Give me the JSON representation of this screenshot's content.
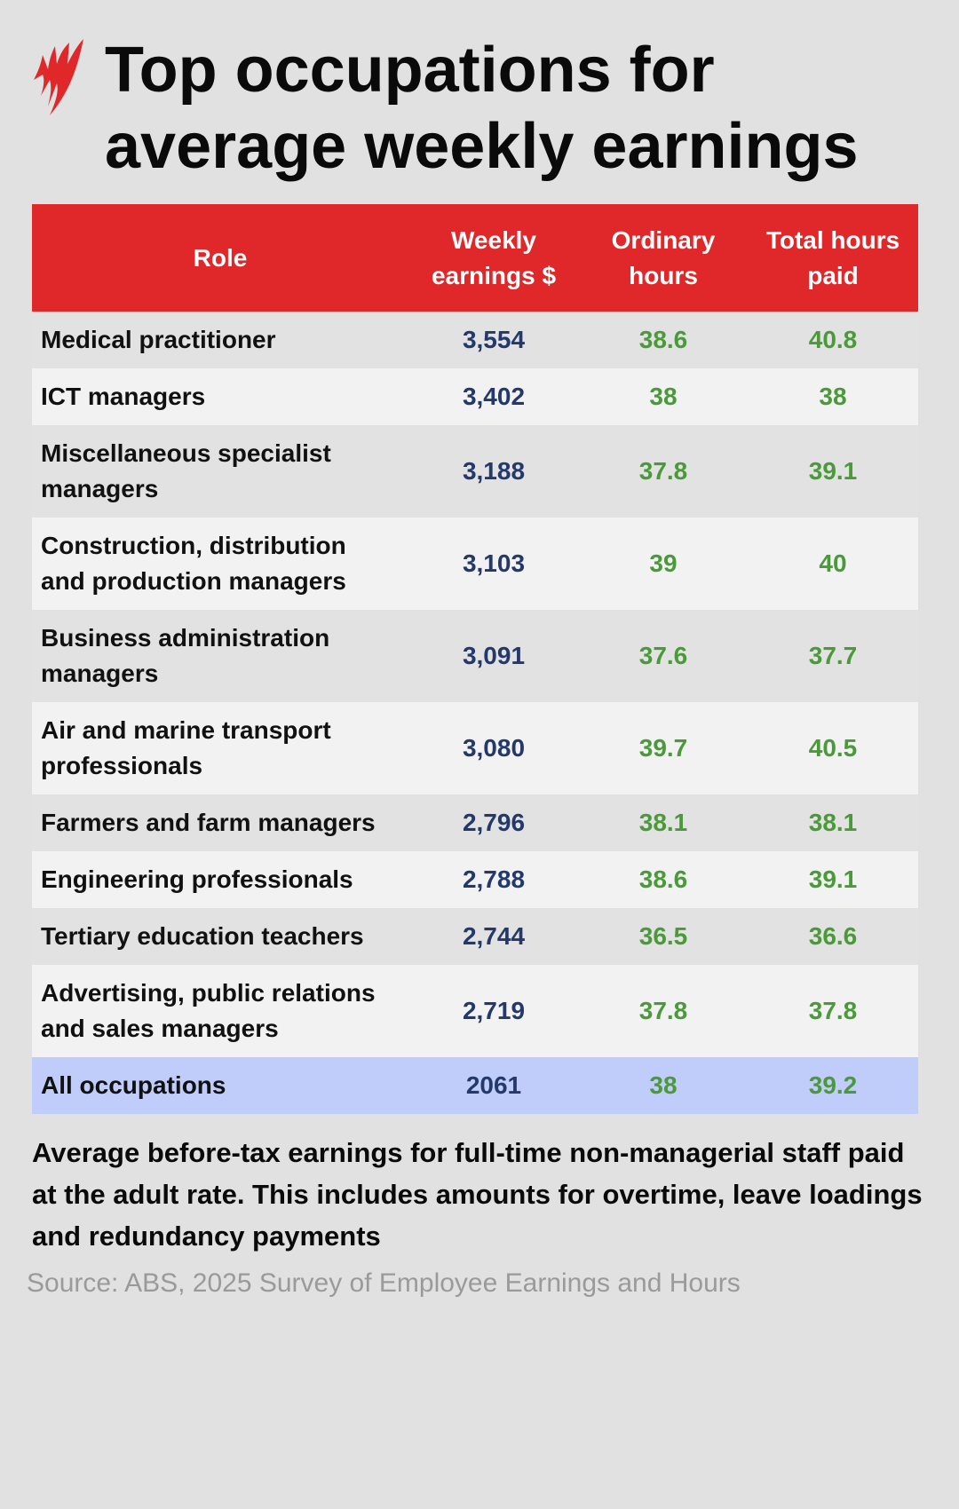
{
  "title": "Top occupations for average weekly earnings",
  "logo": "SBS-logo",
  "colors": {
    "header": "#e0282a",
    "earnings": "#24396b",
    "hours": "#4a9a3a",
    "all_row": "#c0ccfa"
  },
  "chart_data": {
    "type": "table",
    "columns": [
      "Role",
      "Weekly earnings $",
      "Ordinary hours",
      "Total hours paid"
    ],
    "rows": [
      [
        "Medical practitioner",
        "3,554",
        "38.6",
        "40.8"
      ],
      [
        "ICT managers",
        "3,402",
        "38",
        "38"
      ],
      [
        "Miscellaneous specialist managers",
        "3,188",
        "37.8",
        "39.1"
      ],
      [
        "Construction, distribution and production managers",
        "3,103",
        "39",
        "40"
      ],
      [
        "Business administration managers",
        "3,091",
        "37.6",
        "37.7"
      ],
      [
        "Air and marine transport professionals",
        "3,080",
        "39.7",
        "40.5"
      ],
      [
        "Farmers and farm managers",
        "2,796",
        "38.1",
        "38.1"
      ],
      [
        "Engineering professionals",
        "2,788",
        "38.6",
        "39.1"
      ],
      [
        "Tertiary education teachers",
        "2,744",
        "36.5",
        "36.6"
      ],
      [
        "Advertising, public relations and sales managers",
        "2,719",
        "37.8",
        "37.8"
      ]
    ],
    "total_row": [
      "All occupations",
      "2061",
      "38",
      "39.2"
    ]
  },
  "note": "Average before-tax earnings for full-time non-managerial staff paid at the adult rate. This includes amounts for overtime, leave loadings and redundancy payments",
  "source": "Source: ABS, 2025 Survey of Employee Earnings and Hours"
}
